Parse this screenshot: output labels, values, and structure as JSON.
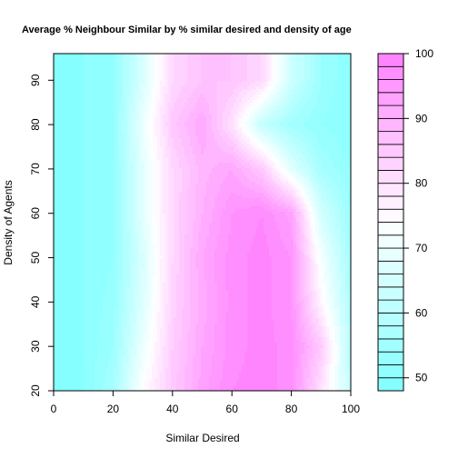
{
  "chart_data": {
    "type": "heatmap",
    "subtype": "filled-contour",
    "title": "Average % Neighbour Similar by % similar desired and density of age",
    "xlabel": "Similar Desired",
    "ylabel": "Density of Agents",
    "xlim": [
      0,
      100
    ],
    "ylim": [
      20,
      96
    ],
    "xticks": [
      "0",
      "20",
      "40",
      "60",
      "80",
      "100"
    ],
    "yticks": [
      "20",
      "30",
      "40",
      "50",
      "60",
      "70",
      "80",
      "90"
    ],
    "color_scale": {
      "low_color": "#80ffff",
      "mid_color": "#ffffff",
      "high_color": "#ff80ff",
      "min": 48,
      "max": 100,
      "levels": 26,
      "ticks": [
        "50",
        "60",
        "70",
        "80",
        "90",
        "100"
      ]
    },
    "x": [
      0,
      10,
      20,
      30,
      40,
      50,
      60,
      70,
      80,
      90,
      100
    ],
    "y": [
      20,
      30,
      40,
      50,
      60,
      70,
      80,
      90
    ],
    "z": [
      [
        48,
        50,
        56,
        74,
        85,
        93,
        98,
        99,
        97,
        80,
        62
      ],
      [
        48,
        50,
        54,
        70,
        84,
        92,
        97,
        99,
        97,
        85,
        60
      ],
      [
        48,
        50,
        53,
        67,
        83,
        91,
        97,
        99,
        96,
        76,
        58
      ],
      [
        48,
        50,
        52,
        66,
        82,
        92,
        97,
        99,
        96,
        72,
        56
      ],
      [
        48,
        50,
        52,
        68,
        82,
        90,
        96,
        98,
        93,
        65,
        54
      ],
      [
        48,
        50,
        52,
        68,
        82,
        89,
        92,
        85,
        68,
        56,
        52
      ],
      [
        48,
        50,
        52,
        70,
        85,
        92,
        80,
        62,
        55,
        52,
        50
      ],
      [
        48,
        50,
        52,
        66,
        82,
        86,
        86,
        82,
        64,
        54,
        50
      ]
    ]
  }
}
